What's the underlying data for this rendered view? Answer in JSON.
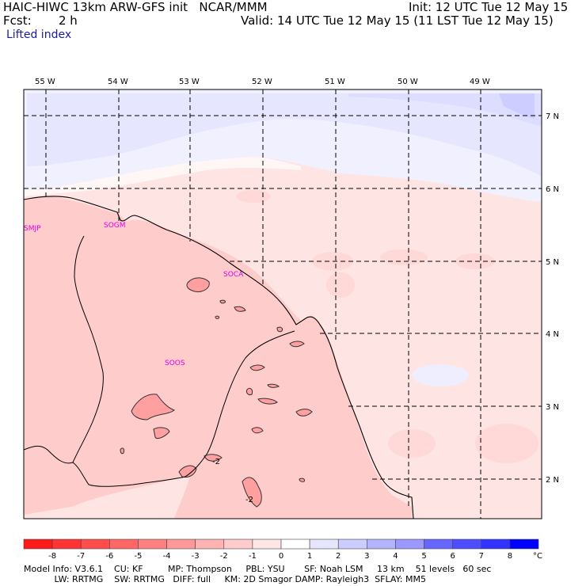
{
  "header": {
    "title_left": "HAIC-HIWC 13km ARW-GFS init   NCAR/MMM",
    "init": "Init: 12 UTC Tue 12 May 15",
    "fcst_label": "Fcst:",
    "fcst_value": "2 h",
    "valid": "Valid: 14 UTC Tue 12 May 15 (11 LST Tue 12 May 15)",
    "field": "Lifted index"
  },
  "map": {
    "lon_labels": [
      "55 W",
      "54 W",
      "53 W",
      "52 W",
      "51 W",
      "50 W",
      "49 W"
    ],
    "lat_labels": [
      "7 N",
      "6 N",
      "5 N",
      "4 N",
      "3 N",
      "2 N"
    ],
    "stations": [
      "SMJP",
      "SOGM",
      "SOCA",
      "SOOS"
    ],
    "contour_labels": [
      "-2",
      "-2"
    ]
  },
  "colorbar": {
    "ticks": [
      "-8",
      "-7",
      "-6",
      "-5",
      "-4",
      "-3",
      "-2",
      "-1",
      "0",
      "1",
      "2",
      "3",
      "4",
      "5",
      "6",
      "7",
      "8"
    ],
    "unit": "°C",
    "colors": [
      "#ff1a1a",
      "#ff3333",
      "#ff4d4d",
      "#ff6666",
      "#ff8080",
      "#ff9999",
      "#ffb3b3",
      "#ffcccc",
      "#ffe6e6",
      "#ffffff",
      "#e6e6ff",
      "#ccccff",
      "#b3b3ff",
      "#9999ff",
      "#6666ff",
      "#4d4dff",
      "#3333ff",
      "#0000ff"
    ]
  },
  "footer": {
    "line1": "Model Info: V3.6.1    CU: KF         MP: Thompson     PBL: YSU       SF: Noah LSM     13 km    51 levels   60 sec",
    "line2": "           LW: RRTMG    SW: RRTMG   DIFF: full     KM: 2D Smagor DAMP: Rayleigh3  SFLAY: MM5"
  }
}
